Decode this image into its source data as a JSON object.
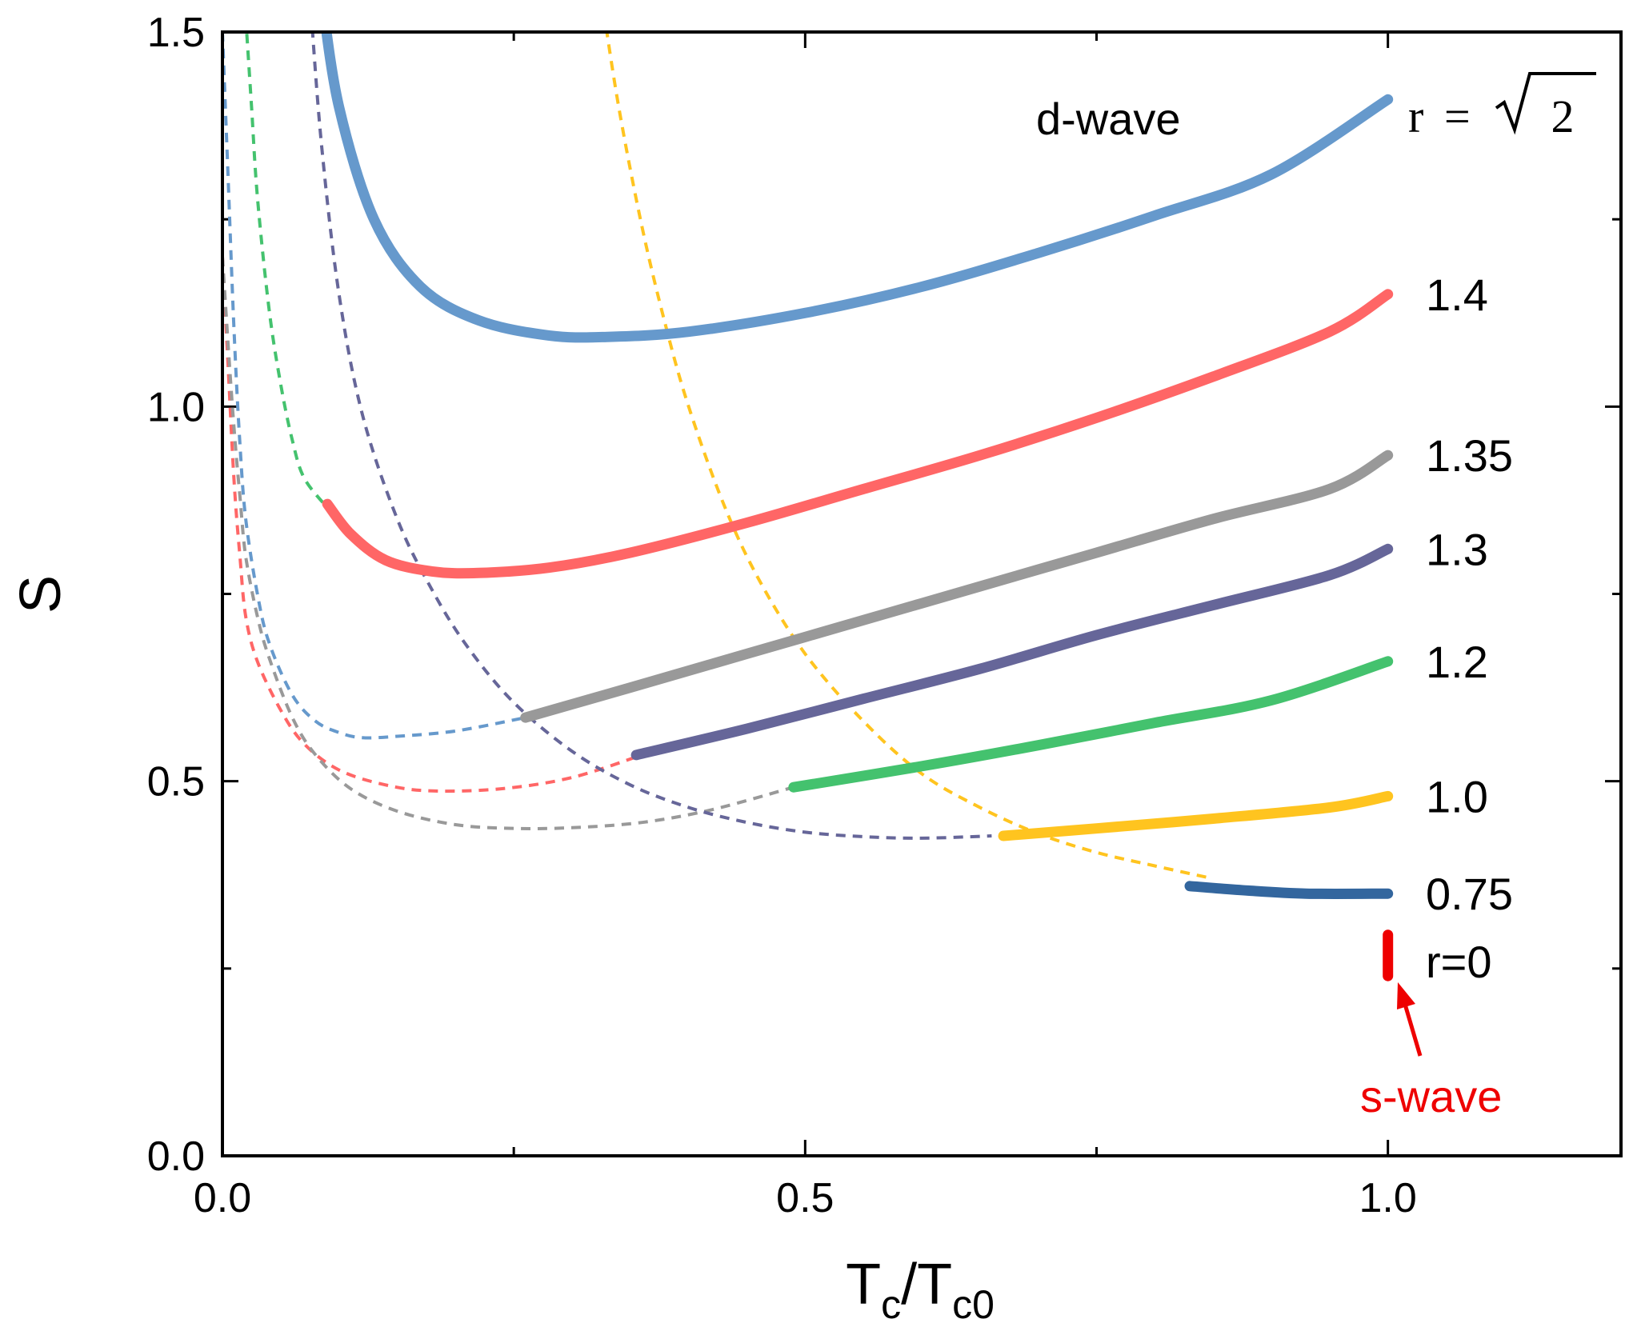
{
  "chart_data": {
    "type": "line",
    "xlabel": {
      "main": "T",
      "sub1": "c",
      "sep": "/T",
      "sub2": "c0"
    },
    "ylabel": "S",
    "xlim": [
      0.0,
      1.2
    ],
    "ylim": [
      0.0,
      1.5
    ],
    "x_ticks": [
      {
        "value": 0.0,
        "label": "0.0"
      },
      {
        "value": 0.5,
        "label": "0.5"
      },
      {
        "value": 1.0,
        "label": "1.0"
      }
    ],
    "y_ticks": [
      {
        "value": 0.0,
        "label": "0.0"
      },
      {
        "value": 0.5,
        "label": "0.5"
      },
      {
        "value": 1.0,
        "label": "1.0"
      },
      {
        "value": 1.5,
        "label": "1.5"
      }
    ],
    "minor_x_ticks": [
      0.25,
      0.75
    ],
    "minor_y_ticks": [
      0.25,
      0.75,
      1.25
    ],
    "annotations": {
      "d_wave": "d-wave",
      "s_wave": "s-wave",
      "r_sqrt2": {
        "lhs": "r",
        "eq": "=",
        "radicand": "2"
      }
    },
    "series": [
      {
        "name": "1.4142",
        "label": "",
        "color": "#6699cc",
        "solid": [
          [
            0.085,
            1.55
          ],
          [
            0.1,
            1.4
          ],
          [
            0.13,
            1.25
          ],
          [
            0.17,
            1.16
          ],
          [
            0.22,
            1.115
          ],
          [
            0.28,
            1.095
          ],
          [
            0.33,
            1.093
          ],
          [
            0.4,
            1.1
          ],
          [
            0.5,
            1.125
          ],
          [
            0.6,
            1.16
          ],
          [
            0.7,
            1.205
          ],
          [
            0.8,
            1.255
          ],
          [
            0.9,
            1.31
          ],
          [
            1.0,
            1.41
          ]
        ],
        "dashed": [
          [
            0.0,
            1.5
          ],
          [
            0.005,
            1.3
          ],
          [
            0.01,
            1.1
          ],
          [
            0.015,
            0.95
          ],
          [
            0.02,
            0.85
          ],
          [
            0.03,
            0.75
          ],
          [
            0.04,
            0.685
          ],
          [
            0.06,
            0.615
          ],
          [
            0.08,
            0.58
          ],
          [
            0.1,
            0.565
          ],
          [
            0.12,
            0.558
          ],
          [
            0.15,
            0.56
          ],
          [
            0.2,
            0.567
          ],
          [
            0.26,
            0.585
          ]
        ]
      },
      {
        "name": "1.4",
        "label": "1.4",
        "color": "#ff6666",
        "solid": [
          [
            0.09,
            0.87
          ],
          [
            0.11,
            0.83
          ],
          [
            0.14,
            0.795
          ],
          [
            0.18,
            0.78
          ],
          [
            0.22,
            0.778
          ],
          [
            0.28,
            0.785
          ],
          [
            0.35,
            0.805
          ],
          [
            0.45,
            0.845
          ],
          [
            0.55,
            0.89
          ],
          [
            0.65,
            0.935
          ],
          [
            0.75,
            0.985
          ],
          [
            0.85,
            1.04
          ],
          [
            0.95,
            1.1
          ],
          [
            1.0,
            1.15
          ]
        ],
        "dashed": [
          [
            0.0,
            1.2
          ],
          [
            0.005,
            1.05
          ],
          [
            0.01,
            0.9
          ],
          [
            0.015,
            0.8
          ],
          [
            0.02,
            0.72
          ],
          [
            0.03,
            0.66
          ],
          [
            0.05,
            0.595
          ],
          [
            0.07,
            0.55
          ],
          [
            0.1,
            0.515
          ],
          [
            0.14,
            0.495
          ],
          [
            0.18,
            0.487
          ],
          [
            0.24,
            0.49
          ],
          [
            0.3,
            0.505
          ],
          [
            0.36,
            0.535
          ]
        ]
      },
      {
        "name": "1.35",
        "label": "1.35",
        "color": "#999999",
        "solid": [
          [
            0.26,
            0.585
          ],
          [
            0.35,
            0.625
          ],
          [
            0.45,
            0.67
          ],
          [
            0.55,
            0.715
          ],
          [
            0.65,
            0.76
          ],
          [
            0.75,
            0.805
          ],
          [
            0.85,
            0.85
          ],
          [
            0.95,
            0.89
          ],
          [
            1.0,
            0.935
          ]
        ],
        "dashed": [
          [
            0.0,
            1.2
          ],
          [
            0.005,
            1.08
          ],
          [
            0.01,
            0.97
          ],
          [
            0.015,
            0.88
          ],
          [
            0.02,
            0.8
          ],
          [
            0.03,
            0.72
          ],
          [
            0.04,
            0.665
          ],
          [
            0.06,
            0.585
          ],
          [
            0.08,
            0.535
          ],
          [
            0.11,
            0.49
          ],
          [
            0.15,
            0.46
          ],
          [
            0.2,
            0.442
          ],
          [
            0.25,
            0.437
          ],
          [
            0.3,
            0.438
          ],
          [
            0.36,
            0.445
          ],
          [
            0.42,
            0.462
          ],
          [
            0.49,
            0.492
          ]
        ]
      },
      {
        "name": "1.3",
        "label": "1.3",
        "color": "#666699",
        "solid": [
          [
            0.355,
            0.535
          ],
          [
            0.45,
            0.57
          ],
          [
            0.55,
            0.61
          ],
          [
            0.65,
            0.65
          ],
          [
            0.75,
            0.695
          ],
          [
            0.85,
            0.735
          ],
          [
            0.95,
            0.775
          ],
          [
            1.0,
            0.81
          ]
        ],
        "dashed": [
          [
            0.075,
            1.55
          ],
          [
            0.085,
            1.35
          ],
          [
            0.1,
            1.15
          ],
          [
            0.12,
            0.99
          ],
          [
            0.15,
            0.85
          ],
          [
            0.18,
            0.755
          ],
          [
            0.21,
            0.68
          ],
          [
            0.25,
            0.605
          ],
          [
            0.3,
            0.54
          ],
          [
            0.35,
            0.495
          ],
          [
            0.4,
            0.465
          ],
          [
            0.45,
            0.445
          ],
          [
            0.5,
            0.432
          ],
          [
            0.55,
            0.426
          ],
          [
            0.6,
            0.424
          ],
          [
            0.66,
            0.427
          ]
        ]
      },
      {
        "name": "1.2",
        "label": "1.2",
        "color": "#44c26e",
        "solid": [
          [
            0.49,
            0.492
          ],
          [
            0.6,
            0.52
          ],
          [
            0.7,
            0.548
          ],
          [
            0.8,
            0.578
          ],
          [
            0.9,
            0.608
          ],
          [
            1.0,
            0.66
          ]
        ],
        "dashed": [
          [
            0.02,
            1.52
          ],
          [
            0.025,
            1.4
          ],
          [
            0.03,
            1.28
          ],
          [
            0.04,
            1.13
          ],
          [
            0.05,
            1.03
          ],
          [
            0.06,
            0.955
          ],
          [
            0.07,
            0.905
          ],
          [
            0.09,
            0.865
          ]
        ]
      },
      {
        "name": "1.0",
        "label": "1.0",
        "color": "#ffc41f",
        "solid": [
          [
            0.67,
            0.427
          ],
          [
            0.75,
            0.437
          ],
          [
            0.85,
            0.45
          ],
          [
            0.95,
            0.465
          ],
          [
            1.0,
            0.48
          ]
        ],
        "dashed": [
          [
            0.325,
            1.55
          ],
          [
            0.34,
            1.4
          ],
          [
            0.36,
            1.24
          ],
          [
            0.38,
            1.11
          ],
          [
            0.4,
            1.0
          ],
          [
            0.43,
            0.87
          ],
          [
            0.46,
            0.77
          ],
          [
            0.5,
            0.67
          ],
          [
            0.55,
            0.58
          ],
          [
            0.6,
            0.51
          ],
          [
            0.65,
            0.465
          ],
          [
            0.7,
            0.43
          ],
          [
            0.75,
            0.405
          ],
          [
            0.8,
            0.387
          ],
          [
            0.85,
            0.37
          ]
        ]
      },
      {
        "name": "0.75",
        "label": "0.75",
        "color": "#33669e",
        "solid": [
          [
            0.83,
            0.36
          ],
          [
            0.88,
            0.354
          ],
          [
            0.93,
            0.35
          ],
          [
            1.0,
            0.35
          ]
        ],
        "dashed": []
      },
      {
        "name": "0",
        "label": "r=0",
        "color": "#ee0000",
        "solid": [
          [
            1.0,
            0.295
          ],
          [
            1.0,
            0.24
          ]
        ],
        "dashed": []
      }
    ]
  }
}
